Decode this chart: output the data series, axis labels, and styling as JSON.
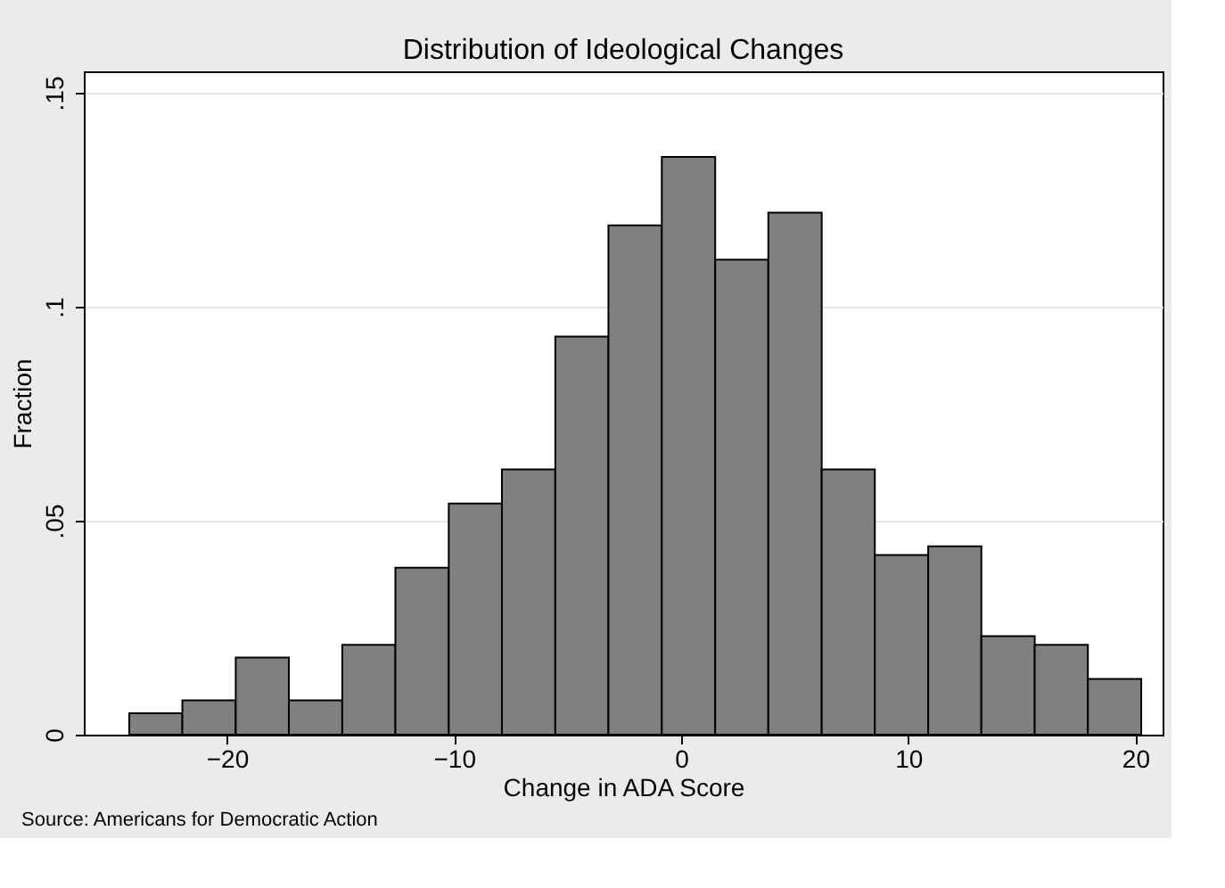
{
  "chart_data": {
    "type": "histogram",
    "title": "Distribution of Ideological Changes",
    "xlabel": "Change in ADA Score",
    "ylabel": "Fraction",
    "bins": [
      -24.3,
      -21.96,
      -19.61,
      -17.27,
      -14.92,
      -12.58,
      -10.23,
      -7.89,
      -5.54,
      -3.2,
      -0.85,
      1.5,
      3.84,
      6.19,
      8.53,
      10.88,
      13.22,
      15.57,
      17.91,
      20.26
    ],
    "values": [
      0.005,
      0.008,
      0.018,
      0.008,
      0.021,
      0.039,
      0.054,
      0.062,
      0.093,
      0.119,
      0.135,
      0.111,
      0.122,
      0.062,
      0.042,
      0.044,
      0.023,
      0.021,
      0.013
    ],
    "color": "#808080",
    "xlim": [
      -26.3,
      21.2
    ],
    "xticks": [
      -20,
      -10,
      0,
      10,
      20
    ],
    "ylim": [
      0,
      0.155
    ],
    "yticks": [
      {
        "value": 0,
        "label": "0"
      },
      {
        "value": 0.05,
        "label": ".05"
      },
      {
        "value": 0.1,
        "label": ".1"
      },
      {
        "value": 0.15,
        "label": ".15"
      }
    ],
    "grid": "y",
    "annotations": [
      "Source:  Americans for Democratic Action"
    ]
  }
}
